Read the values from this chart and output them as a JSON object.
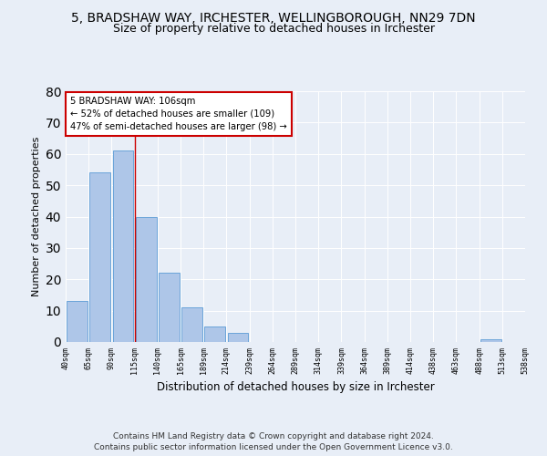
{
  "title1": "5, BRADSHAW WAY, IRCHESTER, WELLINGBOROUGH, NN29 7DN",
  "title2": "Size of property relative to detached houses in Irchester",
  "xlabel": "Distribution of detached houses by size in Irchester",
  "ylabel": "Number of detached properties",
  "bar_values": [
    13,
    54,
    61,
    40,
    22,
    11,
    5,
    3,
    0,
    0,
    0,
    0,
    0,
    0,
    0,
    0,
    0,
    0,
    1,
    0
  ],
  "categories": [
    "40sqm",
    "65sqm",
    "90sqm",
    "115sqm",
    "140sqm",
    "165sqm",
    "189sqm",
    "214sqm",
    "239sqm",
    "264sqm",
    "289sqm",
    "314sqm",
    "339sqm",
    "364sqm",
    "389sqm",
    "414sqm",
    "438sqm",
    "463sqm",
    "488sqm",
    "513sqm",
    "538sqm"
  ],
  "bar_color": "#aec6e8",
  "bar_edge_color": "#5b9bd5",
  "vline_x": 2.5,
  "vline_color": "#cc0000",
  "annotation_line1": "5 BRADSHAW WAY: 106sqm",
  "annotation_line2": "← 52% of detached houses are smaller (109)",
  "annotation_line3": "47% of semi-detached houses are larger (98) →",
  "annotation_box_color": "#cc0000",
  "ylim": [
    0,
    80
  ],
  "background_color": "#e8eef7",
  "plot_bg_color": "#e8eef7",
  "footer_text": "Contains HM Land Registry data © Crown copyright and database right 2024.\nContains public sector information licensed under the Open Government Licence v3.0.",
  "title1_fontsize": 10,
  "title2_fontsize": 9,
  "xlabel_fontsize": 8.5,
  "ylabel_fontsize": 8,
  "footer_fontsize": 6.5
}
